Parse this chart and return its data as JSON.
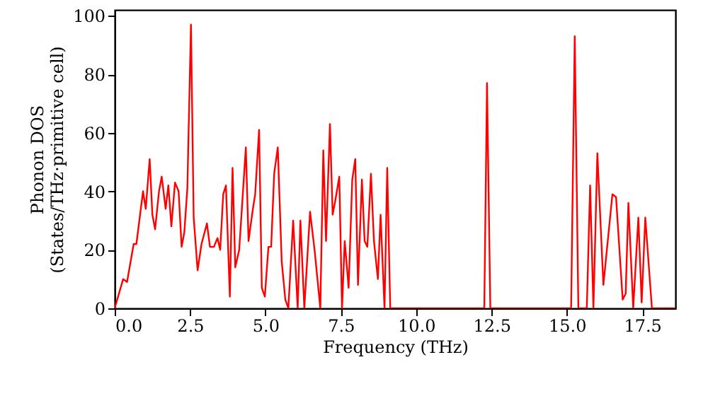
{
  "chart_data": {
    "type": "line",
    "xlabel": "Frequency (THz)",
    "ylabel": "Phonon DOS\n(States/THz·primitive cell)",
    "x": [
      0,
      0.28,
      0.41,
      0.63,
      0.72,
      0.94,
      1.03,
      1.16,
      1.25,
      1.34,
      1.47,
      1.56,
      1.69,
      1.78,
      1.88,
      2.0,
      2.12,
      2.22,
      2.31,
      2.41,
      2.53,
      2.62,
      2.75,
      2.88,
      3.06,
      3.16,
      3.29,
      3.41,
      3.5,
      3.6,
      3.69,
      3.82,
      3.91,
      4.0,
      4.13,
      4.35,
      4.44,
      4.57,
      4.66,
      4.79,
      4.88,
      4.98,
      5.1,
      5.19,
      5.29,
      5.41,
      5.54,
      5.66,
      5.76,
      5.92,
      6.07,
      6.16,
      6.29,
      6.48,
      6.63,
      6.82,
      6.92,
      7.01,
      7.14,
      7.23,
      7.32,
      7.45,
      7.54,
      7.63,
      7.76,
      7.88,
      7.98,
      8.07,
      8.2,
      8.29,
      8.38,
      8.5,
      8.6,
      8.73,
      8.82,
      8.95,
      9.04,
      9.14,
      12.26,
      12.35,
      12.46,
      15.14,
      15.26,
      15.38,
      15.66,
      15.77,
      15.88,
      16.01,
      16.21,
      16.51,
      16.63,
      16.85,
      16.95,
      17.04,
      17.2,
      17.37,
      17.48,
      17.6,
      17.82,
      18.6
    ],
    "series": [
      {
        "color": "#ff0000",
        "values": [
          0,
          10,
          9,
          22,
          22,
          40,
          34,
          51,
          32,
          27,
          40,
          45,
          34,
          42,
          28,
          43,
          40,
          21,
          26,
          41,
          97,
          31,
          13,
          22,
          29,
          21,
          21,
          24,
          20,
          39,
          42,
          4,
          48,
          14,
          20,
          55,
          23,
          33,
          39,
          61,
          7,
          4,
          21,
          21,
          46,
          55,
          16,
          3,
          0,
          30,
          0,
          30,
          0,
          33,
          20,
          0,
          54,
          23,
          63,
          32,
          37,
          45,
          0,
          23,
          7,
          44,
          51,
          8,
          44,
          23,
          21,
          46,
          23,
          10,
          32,
          0,
          48,
          0,
          0,
          77,
          0,
          0,
          93,
          0,
          0,
          42,
          0,
          53,
          8,
          39,
          38,
          3,
          5,
          36,
          0,
          31,
          2,
          31,
          0,
          0
        ]
      }
    ],
    "xlim": [
      0,
      18.6
    ],
    "ylim": [
      0,
      102
    ],
    "xticks": [
      {
        "value": 0,
        "label": "0.0"
      },
      {
        "value": 2.5,
        "label": "2.5"
      },
      {
        "value": 5,
        "label": "5.0"
      },
      {
        "value": 7.5,
        "label": "7.5"
      },
      {
        "value": 10,
        "label": "10.0"
      },
      {
        "value": 12.5,
        "label": "12.5"
      },
      {
        "value": 15,
        "label": "15.0"
      },
      {
        "value": 17.5,
        "label": "17.5"
      }
    ],
    "yticks": [
      0,
      20,
      40,
      60,
      80,
      100
    ],
    "grid": false,
    "line_style": "solid",
    "marker": "none"
  }
}
